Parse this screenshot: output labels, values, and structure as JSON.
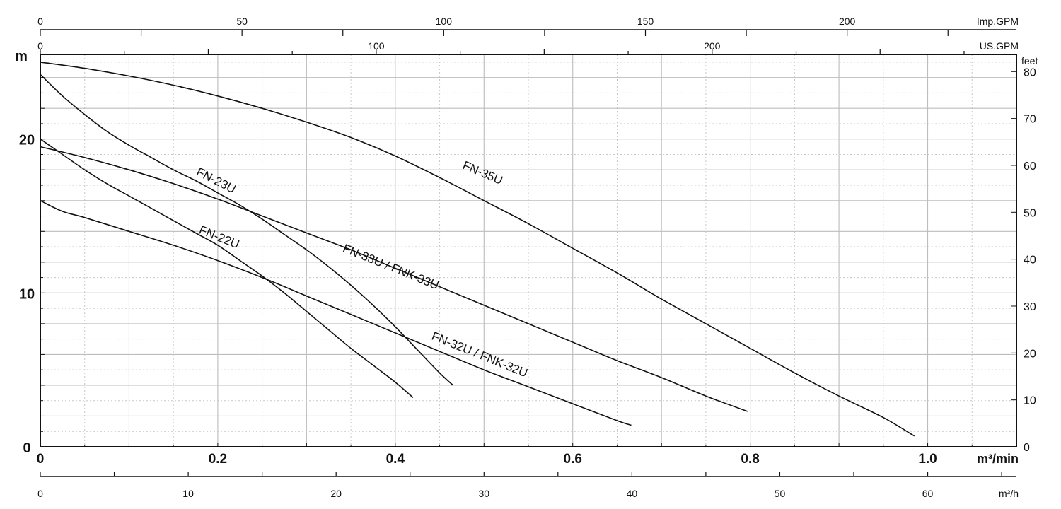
{
  "chart_data": {
    "type": "line",
    "x_unit_label": "m³/min",
    "x_range": [
      0,
      1.1
    ],
    "x_ticks": [
      "0",
      "0.2",
      "0.4",
      "0.6",
      "0.8",
      "1.0"
    ],
    "y_unit_label": "m",
    "y_range": [
      0,
      25.5
    ],
    "y_ticks": [
      "0",
      "10",
      "20"
    ],
    "feet_axis": {
      "label": "feet",
      "ticks": [
        "0",
        "10",
        "20",
        "30",
        "40",
        "50",
        "60",
        "70",
        "80"
      ]
    },
    "imp_gpm_axis": {
      "label": "Imp.GPM",
      "ticks": [
        "0",
        "50",
        "100",
        "150",
        "200"
      ]
    },
    "us_gpm_axis": {
      "label": "US.GPM",
      "ticks": [
        "0",
        "100",
        "200"
      ]
    },
    "m3h_axis": {
      "label": "m³/h",
      "ticks": [
        "0",
        "10",
        "20",
        "30",
        "40",
        "50",
        "60"
      ]
    },
    "grid": true,
    "series": [
      {
        "name": "FN-35U",
        "points": [
          [
            0,
            25.0
          ],
          [
            0.05,
            24.6
          ],
          [
            0.1,
            24.1
          ],
          [
            0.15,
            23.5
          ],
          [
            0.2,
            22.8
          ],
          [
            0.25,
            22.0
          ],
          [
            0.3,
            21.1
          ],
          [
            0.35,
            20.1
          ],
          [
            0.4,
            18.9
          ],
          [
            0.45,
            17.5
          ],
          [
            0.5,
            16.0
          ],
          [
            0.55,
            14.5
          ],
          [
            0.6,
            12.9
          ],
          [
            0.65,
            11.3
          ],
          [
            0.7,
            9.6
          ],
          [
            0.75,
            8.0
          ],
          [
            0.8,
            6.4
          ],
          [
            0.85,
            4.8
          ],
          [
            0.9,
            3.3
          ],
          [
            0.95,
            1.9
          ],
          [
            0.985,
            0.7
          ]
        ]
      },
      {
        "name": "FN-23U",
        "points": [
          [
            0,
            24.2
          ],
          [
            0.025,
            22.8
          ],
          [
            0.05,
            21.6
          ],
          [
            0.075,
            20.5
          ],
          [
            0.1,
            19.6
          ],
          [
            0.125,
            18.8
          ],
          [
            0.15,
            18.0
          ],
          [
            0.175,
            17.3
          ],
          [
            0.2,
            16.5
          ],
          [
            0.225,
            15.7
          ],
          [
            0.25,
            14.8
          ],
          [
            0.275,
            13.8
          ],
          [
            0.3,
            12.8
          ],
          [
            0.325,
            11.7
          ],
          [
            0.35,
            10.5
          ],
          [
            0.375,
            9.2
          ],
          [
            0.4,
            7.8
          ],
          [
            0.425,
            6.3
          ],
          [
            0.45,
            4.8
          ],
          [
            0.465,
            4.0
          ]
        ]
      },
      {
        "name": "FN-33U / FNK-33U",
        "points": [
          [
            0,
            19.5
          ],
          [
            0.05,
            18.8
          ],
          [
            0.1,
            18.0
          ],
          [
            0.15,
            17.1
          ],
          [
            0.2,
            16.1
          ],
          [
            0.25,
            15.0
          ],
          [
            0.3,
            13.9
          ],
          [
            0.35,
            12.8
          ],
          [
            0.4,
            11.6
          ],
          [
            0.45,
            10.4
          ],
          [
            0.5,
            9.2
          ],
          [
            0.55,
            8.0
          ],
          [
            0.6,
            6.8
          ],
          [
            0.65,
            5.6
          ],
          [
            0.7,
            4.5
          ],
          [
            0.75,
            3.3
          ],
          [
            0.797,
            2.3
          ]
        ]
      },
      {
        "name": "FN-22U",
        "points": [
          [
            0,
            20.0
          ],
          [
            0.025,
            19.0
          ],
          [
            0.05,
            18.0
          ],
          [
            0.075,
            17.1
          ],
          [
            0.1,
            16.3
          ],
          [
            0.125,
            15.5
          ],
          [
            0.15,
            14.7
          ],
          [
            0.175,
            13.9
          ],
          [
            0.2,
            13.1
          ],
          [
            0.225,
            12.1
          ],
          [
            0.25,
            11.1
          ],
          [
            0.275,
            10.0
          ],
          [
            0.3,
            8.8
          ],
          [
            0.325,
            7.6
          ],
          [
            0.35,
            6.4
          ],
          [
            0.375,
            5.3
          ],
          [
            0.4,
            4.2
          ],
          [
            0.42,
            3.2
          ]
        ]
      },
      {
        "name": "FN-32U / FNK-32U",
        "points": [
          [
            0,
            16.0
          ],
          [
            0.025,
            15.3
          ],
          [
            0.05,
            14.9
          ],
          [
            0.1,
            14.0
          ],
          [
            0.15,
            13.1
          ],
          [
            0.2,
            12.1
          ],
          [
            0.25,
            11.0
          ],
          [
            0.3,
            9.8
          ],
          [
            0.35,
            8.6
          ],
          [
            0.4,
            7.4
          ],
          [
            0.45,
            6.2
          ],
          [
            0.5,
            5.0
          ],
          [
            0.55,
            3.9
          ],
          [
            0.6,
            2.8
          ],
          [
            0.65,
            1.7
          ],
          [
            0.666,
            1.4
          ]
        ]
      }
    ],
    "curve_labels": [
      {
        "text": "FN-35U",
        "series": "FN-35U"
      },
      {
        "text": "FN-23U",
        "series": "FN-23U"
      },
      {
        "text": "FN-33U / FNK-33U",
        "series": "FN-33U / FNK-33U"
      },
      {
        "text": "FN-22U",
        "series": "FN-22U"
      },
      {
        "text": "FN-32U / FNK-32U",
        "series": "FN-32U / FNK-32U"
      }
    ]
  }
}
